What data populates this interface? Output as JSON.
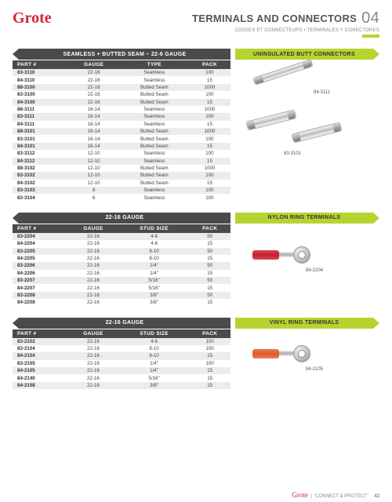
{
  "brand": {
    "name": "Grote",
    "color": "#d22630"
  },
  "header": {
    "title": "TERMINALS AND CONNECTORS",
    "subtitle": "COSSES ET CONNECTEURS • TERMINALES Y CONECTORES",
    "chapter": "04"
  },
  "accent_color": "#b6d430",
  "dark_color": "#4a4a4a",
  "section1": {
    "left_title": "SEAMLESS + BUTTED SEAM – 22-6 GAUGE",
    "right_title": "UNINSULATED BUTT CONNECTORS",
    "left_width": 278,
    "columns": [
      "PART #",
      "GAUGE",
      "TYPE",
      "PACK"
    ],
    "rows": [
      [
        "83-3110",
        "22-16",
        "Seamless",
        "100"
      ],
      [
        "84-3110",
        "22-16",
        "Seamless",
        "15"
      ],
      [
        "88-3100",
        "22-16",
        "Butted Seam",
        "1000"
      ],
      [
        "83-3100",
        "22-16",
        "Butted Seam",
        "100"
      ],
      [
        "84-3100",
        "22-16",
        "Butted Seam",
        "15"
      ],
      [
        "88-3111",
        "16-14",
        "Seamless",
        "1000"
      ],
      [
        "83-3111",
        "16-14",
        "Seamless",
        "100"
      ],
      [
        "84-3111",
        "16-14",
        "Seamless",
        "15"
      ],
      [
        "88-3101",
        "16-14",
        "Butted Seam",
        "1000"
      ],
      [
        "83-3101",
        "16-14",
        "Butted Seam",
        "100"
      ],
      [
        "84-3101",
        "16-14",
        "Butted Seam",
        "15"
      ],
      [
        "83-3112",
        "12-10",
        "Seamless",
        "100"
      ],
      [
        "84-3112",
        "12-10",
        "Seamless",
        "15"
      ],
      [
        "88-3102",
        "12-10",
        "Butted Seam",
        "1000"
      ],
      [
        "83-3102",
        "12-10",
        "Butted Seam",
        "100"
      ],
      [
        "84-3102",
        "12-10",
        "Butted Seam",
        "15"
      ],
      [
        "83-3103",
        "8",
        "Seamless",
        "100"
      ],
      [
        "83-3104",
        "6",
        "Seamless",
        "100"
      ]
    ],
    "img_labels": {
      "a": "84-3111",
      "b": "83-3101"
    }
  },
  "section2": {
    "left_title": "22-16 GAUGE",
    "right_title": "NYLON RING TERMINALS",
    "left_width": 278,
    "columns": [
      "PART #",
      "GAUGE",
      "STUD SIZE",
      "PACK"
    ],
    "rows": [
      [
        "83-2204",
        "22-16",
        "4-6",
        "50"
      ],
      [
        "84-2204",
        "22-16",
        "4-6",
        "15"
      ],
      [
        "83-2205",
        "22-16",
        "8-10",
        "50"
      ],
      [
        "84-2205",
        "22-16",
        "8-10",
        "15"
      ],
      [
        "83-2206",
        "22-16",
        "1/4\"",
        "50"
      ],
      [
        "84-2206",
        "22-16",
        "1/4\"",
        "15"
      ],
      [
        "83-2207",
        "22-16",
        "5/16\"",
        "50"
      ],
      [
        "84-2207",
        "22-16",
        "5/16\"",
        "15"
      ],
      [
        "83-2208",
        "22-16",
        "3/8\"",
        "50"
      ],
      [
        "84-2208",
        "22-16",
        "3/8\"",
        "15"
      ]
    ],
    "ring_color": "#c81e2b",
    "img_label": "84-2204"
  },
  "section3": {
    "left_title": "22-16 GAUGE",
    "right_title": "VINYL RING TERMINALS",
    "left_width": 278,
    "columns": [
      "PART #",
      "GAUGE",
      "STUD SIZE",
      "PACK"
    ],
    "rows": [
      [
        "83-2102",
        "22-16",
        "4-6",
        "100"
      ],
      [
        "83-2104",
        "22-16",
        "8-10",
        "100"
      ],
      [
        "84-2104",
        "22-16",
        "8-10",
        "15"
      ],
      [
        "83-2105",
        "22-16",
        "1/4\"",
        "100"
      ],
      [
        "84-2105",
        "22-16",
        "1/4\"",
        "15"
      ],
      [
        "84-2140",
        "22-16",
        "5/16\"",
        "15"
      ],
      [
        "84-2108",
        "22-16",
        "3/8\"",
        "15"
      ]
    ],
    "ring_color": "#e05a2b",
    "img_label": "84-2105"
  },
  "footer": {
    "tagline": "'CONNECT & PROTECT'",
    "page": "43"
  }
}
